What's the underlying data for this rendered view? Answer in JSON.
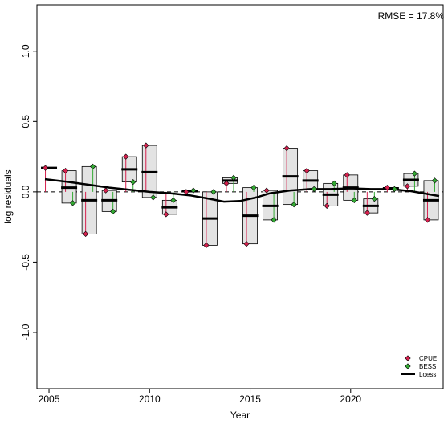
{
  "chart_data": {
    "type": "box-residual",
    "title": "",
    "xlabel": "Year",
    "ylabel": "log residuals",
    "annotation": "RMSE = 17.8%",
    "xlim": [
      2004.4,
      2024.6
    ],
    "ylim": [
      -1.4,
      1.33
    ],
    "xticks": [
      2005,
      2010,
      2015,
      2020
    ],
    "yticks": [
      -1.0,
      -0.5,
      0.0,
      0.5,
      1.0
    ],
    "ytick_labels": [
      "-1.0",
      "-0.5",
      "0.0",
      "0.5",
      "1.0"
    ],
    "colors": {
      "cpue": "#d6204e",
      "bess": "#33aa33",
      "box_fill": "#e3e3e3",
      "loess": "#000000"
    },
    "legend": {
      "position": "bottom-right",
      "entries": [
        {
          "label": "CPUE",
          "color": "#d6204e",
          "kind": "diamond"
        },
        {
          "label": "BESS",
          "color": "#33aa33",
          "kind": "diamond"
        },
        {
          "label": "Loess",
          "color": "#000000",
          "kind": "line"
        }
      ]
    },
    "boxes": [
      {
        "year": 2005,
        "cpue": 0.17,
        "bess": null,
        "median": 0.17
      },
      {
        "year": 2006,
        "cpue": 0.15,
        "bess": -0.08,
        "median": 0.03
      },
      {
        "year": 2007,
        "cpue": -0.3,
        "bess": 0.18,
        "median": -0.06
      },
      {
        "year": 2008,
        "cpue": 0.01,
        "bess": -0.14,
        "median": -0.06
      },
      {
        "year": 2009,
        "cpue": 0.25,
        "bess": 0.07,
        "median": 0.16
      },
      {
        "year": 2010,
        "cpue": 0.33,
        "bess": -0.04,
        "median": 0.14
      },
      {
        "year": 2011,
        "cpue": -0.16,
        "bess": -0.06,
        "median": -0.11
      },
      {
        "year": 2012,
        "cpue": 0.0,
        "bess": 0.01,
        "median": 0.005
      },
      {
        "year": 2013,
        "cpue": -0.38,
        "bess": 0.0,
        "median": -0.19
      },
      {
        "year": 2014,
        "cpue": 0.06,
        "bess": 0.1,
        "median": 0.08
      },
      {
        "year": 2015,
        "cpue": -0.37,
        "bess": 0.03,
        "median": -0.17
      },
      {
        "year": 2016,
        "cpue": 0.01,
        "bess": -0.2,
        "median": -0.1
      },
      {
        "year": 2017,
        "cpue": 0.31,
        "bess": -0.09,
        "median": 0.11
      },
      {
        "year": 2018,
        "cpue": 0.15,
        "bess": 0.02,
        "median": 0.08
      },
      {
        "year": 2019,
        "cpue": -0.1,
        "bess": 0.06,
        "median": -0.02
      },
      {
        "year": 2020,
        "cpue": 0.12,
        "bess": -0.06,
        "median": 0.03
      },
      {
        "year": 2021,
        "cpue": -0.15,
        "bess": -0.05,
        "median": -0.1
      },
      {
        "year": 2022,
        "cpue": 0.03,
        "bess": 0.02,
        "median": 0.025
      },
      {
        "year": 2023,
        "cpue": 0.04,
        "bess": 0.13,
        "median": 0.085
      },
      {
        "year": 2024,
        "cpue": -0.2,
        "bess": 0.08,
        "median": -0.06
      }
    ],
    "loess": {
      "x": [
        2004.8,
        2006,
        2007,
        2008,
        2009,
        2010,
        2011,
        2012,
        2013,
        2013.7,
        2014.5,
        2015.3,
        2016,
        2017,
        2018,
        2019,
        2020,
        2021,
        2022,
        2023,
        2024.4
      ],
      "y": [
        0.09,
        0.07,
        0.05,
        0.03,
        0.015,
        0.0,
        -0.01,
        -0.025,
        -0.05,
        -0.07,
        -0.065,
        -0.04,
        -0.01,
        0.01,
        0.02,
        0.02,
        0.025,
        0.02,
        0.02,
        0.005,
        -0.03
      ]
    }
  }
}
